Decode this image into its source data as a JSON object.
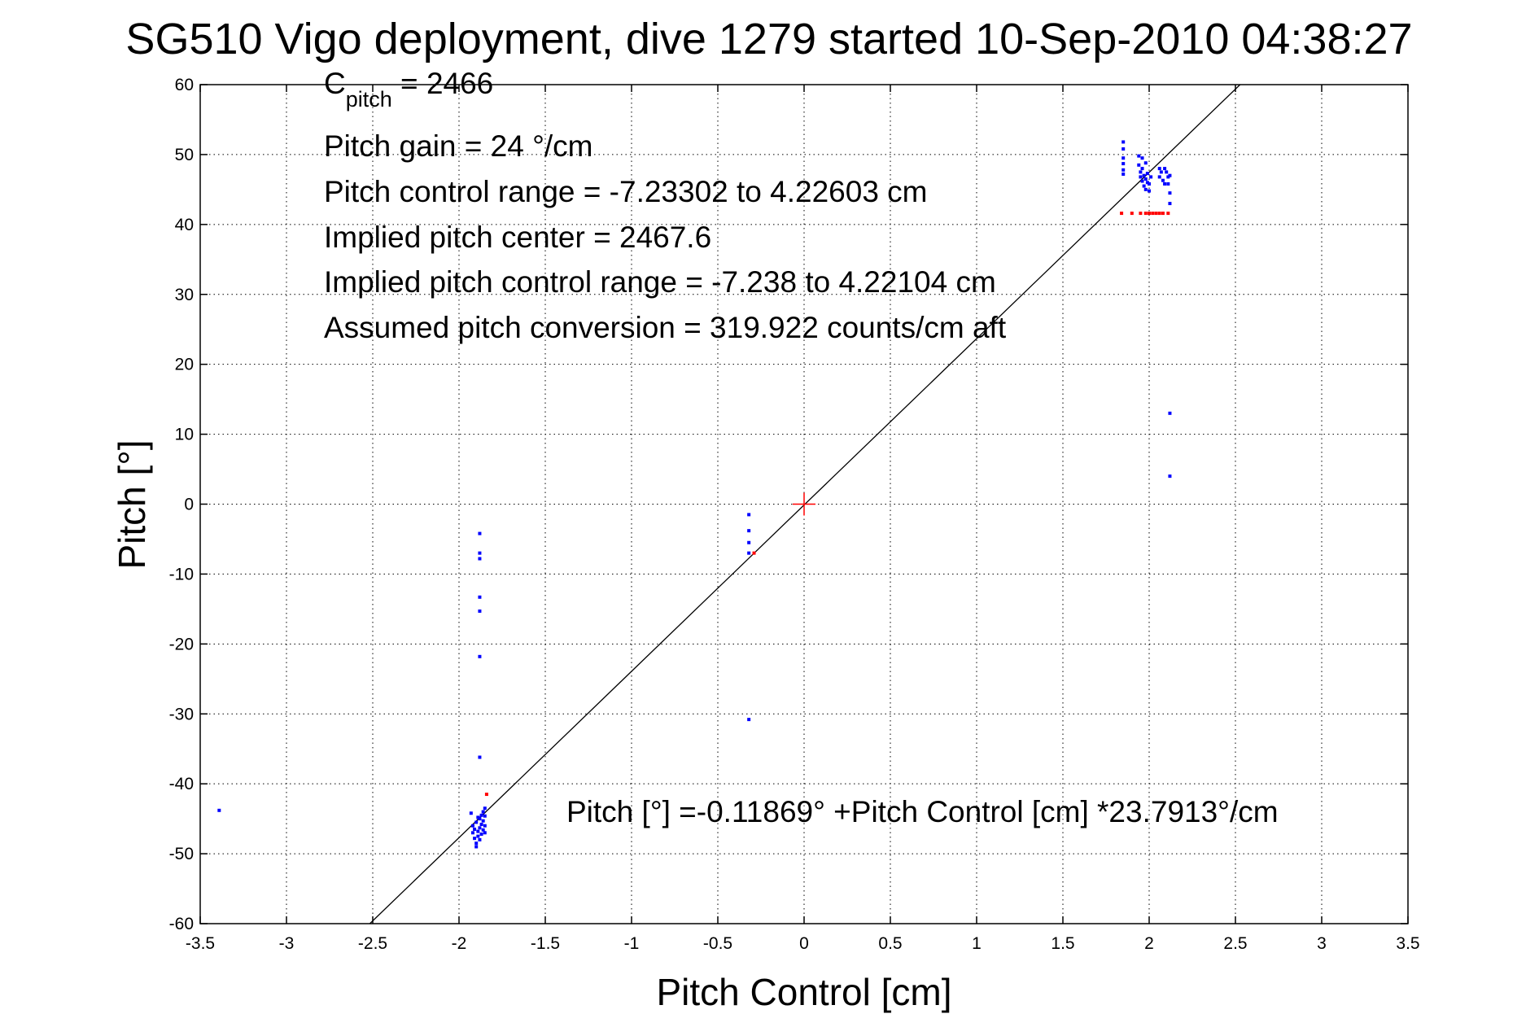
{
  "chart_data": {
    "type": "scatter",
    "title": "SG510 Vigo deployment, dive 1279 started 10-Sep-2010 04:38:27",
    "xlabel": "Pitch Control [cm]",
    "ylabel": "Pitch [°]",
    "xlim": [
      -3.5,
      3.5
    ],
    "ylim": [
      -60,
      60
    ],
    "xticks": [
      "-3.5",
      "-3",
      "-2.5",
      "-2",
      "-1.5",
      "-1",
      "-0.5",
      "0",
      "0.5",
      "1",
      "1.5",
      "2",
      "2.5",
      "3",
      "3.5"
    ],
    "yticks": [
      "-60",
      "-50",
      "-40",
      "-30",
      "-20",
      "-10",
      "0",
      "10",
      "20",
      "30",
      "40",
      "50",
      "60"
    ],
    "grid": true,
    "colors": {
      "good": "#0000ff",
      "flagged": "#ff0000",
      "fit_line": "#000000",
      "center_marker": "#ff0000"
    },
    "annotations": {
      "c_pitch_main": "C",
      "c_pitch_sub": "pitch",
      "c_pitch_value": " = 2466",
      "pitch_gain": "Pitch gain = 24 °/cm",
      "control_range": "Pitch control range = -7.23302 to 4.22603 cm",
      "implied_center": "Implied pitch center = 2467.6",
      "implied_range": "Implied pitch control range = -7.238 to 4.22104 cm",
      "conversion": "Assumed pitch conversion = 319.922 counts/cm aft",
      "fit_equation": "Pitch [°] =-0.11869° +Pitch Control [cm] *23.7913°/cm"
    },
    "fit": {
      "intercept": -0.11869,
      "slope": 23.7913
    },
    "center_marker": {
      "x": 0,
      "y": 0
    },
    "series": [
      {
        "name": "",
        "color": "#0000ff",
        "points": [
          [
            -3.39,
            -43.8
          ],
          [
            -1.88,
            -4.2
          ],
          [
            -1.88,
            -7.0
          ],
          [
            -1.88,
            -7.8
          ],
          [
            -1.88,
            -13.3
          ],
          [
            -1.88,
            -15.3
          ],
          [
            -1.88,
            -21.8
          ],
          [
            -1.88,
            -36.2
          ],
          [
            -1.93,
            -44.2
          ],
          [
            -1.92,
            -46.0
          ],
          [
            -1.92,
            -47.0
          ],
          [
            -1.91,
            -46.5
          ],
          [
            -1.91,
            -47.8
          ],
          [
            -1.9,
            -45.5
          ],
          [
            -1.9,
            -48.5
          ],
          [
            -1.9,
            -49.0
          ],
          [
            -1.89,
            -46.8
          ],
          [
            -1.89,
            -44.8
          ],
          [
            -1.89,
            -47.5
          ],
          [
            -1.88,
            -45.0
          ],
          [
            -1.88,
            -46.3
          ],
          [
            -1.88,
            -48.0
          ],
          [
            -1.87,
            -44.5
          ],
          [
            -1.87,
            -45.8
          ],
          [
            -1.87,
            -47.2
          ],
          [
            -1.86,
            -44.0
          ],
          [
            -1.86,
            -45.3
          ],
          [
            -1.86,
            -46.6
          ],
          [
            -1.85,
            -43.5
          ],
          [
            -1.85,
            -44.6
          ],
          [
            -1.85,
            -46.0
          ],
          [
            -1.85,
            -47.0
          ],
          [
            -0.32,
            -1.5
          ],
          [
            -0.32,
            -3.8
          ],
          [
            -0.32,
            -5.5
          ],
          [
            -0.32,
            -7.0
          ],
          [
            -0.32,
            -30.8
          ],
          [
            1.85,
            51.8
          ],
          [
            1.85,
            50.8
          ],
          [
            1.85,
            49.5
          ],
          [
            1.85,
            48.7
          ],
          [
            1.85,
            47.8
          ],
          [
            1.85,
            47.2
          ],
          [
            1.94,
            49.8
          ],
          [
            1.94,
            48.5
          ],
          [
            1.95,
            47.5
          ],
          [
            1.95,
            46.8
          ],
          [
            1.96,
            49.5
          ],
          [
            1.96,
            48.0
          ],
          [
            1.96,
            46.2
          ],
          [
            1.97,
            47.0
          ],
          [
            1.97,
            45.5
          ],
          [
            1.98,
            48.8
          ],
          [
            1.98,
            46.5
          ],
          [
            1.98,
            45.0
          ],
          [
            1.99,
            47.3
          ],
          [
            1.99,
            46.0
          ],
          [
            2.0,
            45.8
          ],
          [
            2.0,
            44.8
          ],
          [
            2.01,
            46.8
          ],
          [
            2.06,
            48.0
          ],
          [
            2.06,
            46.8
          ],
          [
            2.07,
            47.5
          ],
          [
            2.08,
            46.3
          ],
          [
            2.09,
            48.0
          ],
          [
            2.09,
            45.8
          ],
          [
            2.1,
            47.5
          ],
          [
            2.11,
            46.8
          ],
          [
            2.11,
            45.8
          ],
          [
            2.12,
            47.0
          ],
          [
            2.12,
            44.5
          ],
          [
            2.12,
            43.0
          ],
          [
            2.12,
            13.0
          ],
          [
            2.12,
            4.0
          ]
        ]
      },
      {
        "name": "",
        "color": "#ff0000",
        "points": [
          [
            1.84,
            41.6
          ],
          [
            1.9,
            41.6
          ],
          [
            1.95,
            41.6
          ],
          [
            1.98,
            41.6
          ],
          [
            2.0,
            41.6
          ],
          [
            2.02,
            41.6
          ],
          [
            2.04,
            41.6
          ],
          [
            2.06,
            41.6
          ],
          [
            2.08,
            41.6
          ],
          [
            2.11,
            41.6
          ],
          [
            -0.29,
            -7.0
          ],
          [
            -1.84,
            -41.5
          ]
        ]
      }
    ]
  }
}
